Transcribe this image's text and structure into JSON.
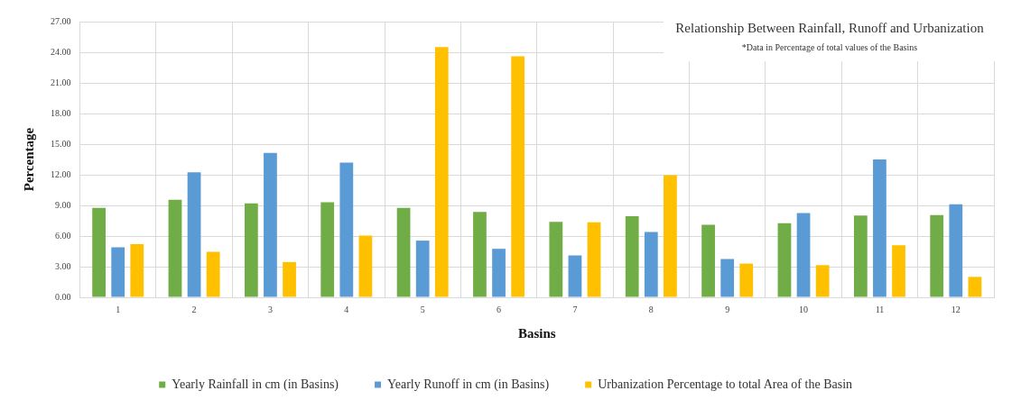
{
  "chart_data": {
    "type": "bar",
    "title": "Relationship Between Rainfall, Runoff and Urbanization",
    "subtitle": "*Data in Percentage of total values of the Basins",
    "xlabel": "Basins",
    "ylabel": "Percentage",
    "categories": [
      "1",
      "2",
      "3",
      "4",
      "5",
      "6",
      "7",
      "8",
      "9",
      "10",
      "11",
      "12"
    ],
    "series": [
      {
        "name": "Yearly Rainfall in cm (in Basins)",
        "color": "#70ad47",
        "values": [
          8.75,
          9.55,
          9.2,
          9.3,
          8.75,
          8.35,
          7.4,
          7.95,
          7.1,
          7.25,
          8.0,
          8.05
        ]
      },
      {
        "name": "Yearly Runoff in cm (in Basins)",
        "color": "#5b9bd5",
        "values": [
          4.9,
          12.25,
          14.15,
          13.2,
          5.55,
          4.75,
          4.1,
          6.4,
          3.75,
          8.25,
          13.5,
          9.1
        ]
      },
      {
        "name": "Urbanization Percentage to total Area of the Basin",
        "color": "#ffc000",
        "values": [
          5.2,
          4.45,
          3.45,
          6.05,
          24.5,
          23.6,
          7.35,
          11.95,
          3.3,
          3.15,
          5.1,
          2.0
        ]
      }
    ],
    "ylim": [
      0,
      27
    ],
    "yticks": [
      {
        "value": 0,
        "label": "0.00"
      },
      {
        "value": 3,
        "label": "3.00"
      },
      {
        "value": 6,
        "label": "6.00"
      },
      {
        "value": 9,
        "label": "9.00"
      },
      {
        "value": 12,
        "label": "12.00"
      },
      {
        "value": 15,
        "label": "15.00"
      },
      {
        "value": 18,
        "label": "18.00"
      },
      {
        "value": 21,
        "label": "21.00"
      },
      {
        "value": 24,
        "label": "24.00"
      },
      {
        "value": 27,
        "label": "27.00"
      }
    ],
    "grid": true,
    "legend": "bottom"
  }
}
